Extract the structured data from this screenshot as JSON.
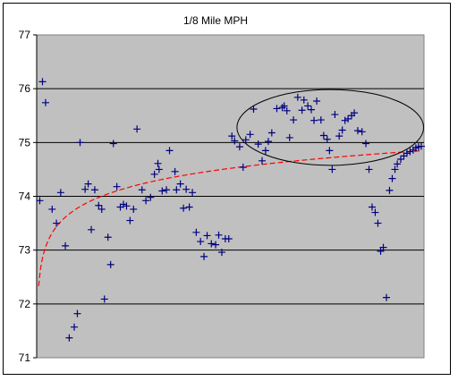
{
  "chart_data": {
    "type": "scatter",
    "title": "1/8 Mile MPH",
    "xlabel": "",
    "ylabel": "",
    "ylim": [
      71,
      77
    ],
    "xlim": [
      0,
      100
    ],
    "yticks": [
      "71",
      "72",
      "73",
      "74",
      "75",
      "76",
      "77"
    ],
    "grid": "horizontal major gridlines",
    "plot_background": "#c0c0c0",
    "marker": "plus",
    "marker_color": "#000080",
    "trendline": {
      "type": "logarithmic",
      "color": "#ff0000",
      "style": "dashed",
      "a": 72.662,
      "b": 0.475
    },
    "highlight_ellipse": {
      "center": [
        75.8,
        75.28
      ],
      "radius": [
        24.1,
        0.705
      ]
    },
    "x": [
      0.8,
      1.5,
      2.3,
      4.0,
      5.1,
      6.2,
      7.4,
      8.4,
      9.7,
      10.5,
      11.2,
      12.5,
      13.3,
      14.1,
      15.0,
      16.0,
      16.8,
      17.5,
      18.4,
      19.1,
      19.8,
      20.7,
      21.6,
      22.4,
      23.2,
      24.1,
      25.0,
      25.9,
      27.2,
      28.2,
      29.4,
      30.4,
      31.3,
      31.6,
      32.4,
      33.5,
      34.3,
      35.7,
      36.1,
      37.1,
      37.9,
      38.6,
      39.4,
      40.2,
      41.2,
      42.3,
      43.2,
      44.0,
      45.1,
      46.2,
      47.0,
      47.8,
      48.7,
      49.6,
      50.4,
      51.1,
      52.4,
      53.3,
      54.0,
      55.1,
      56.0,
      57.2,
      58.2,
      59.1,
      59.8,
      60.7,
      62.0,
      63.4,
      63.9,
      64.6,
      65.3,
      66.3,
      67.4,
      68.5,
      69.0,
      70.0,
      70.9,
      71.6,
      72.3,
      73.4,
      74.1,
      75.0,
      75.6,
      76.3,
      77.0,
      78.1,
      78.9,
      79.6,
      80.4,
      81.3,
      82.0,
      82.9,
      84.0,
      85.0,
      85.8,
      86.6,
      87.4,
      88.1,
      88.8,
      89.5,
      90.3,
      91.1,
      91.8,
      92.5,
      93.1,
      94.0,
      94.8,
      95.6,
      96.4,
      97.2,
      97.9,
      98.6,
      99.3
    ],
    "y": [
      73.92,
      76.13,
      75.74,
      73.76,
      73.5,
      74.07,
      73.08,
      71.37,
      71.57,
      71.82,
      75.0,
      74.13,
      74.23,
      73.38,
      74.12,
      73.83,
      73.76,
      72.09,
      73.24,
      72.73,
      74.98,
      74.18,
      73.8,
      73.85,
      73.82,
      73.55,
      73.76,
      75.25,
      74.12,
      73.92,
      73.98,
      74.41,
      74.61,
      74.5,
      74.1,
      74.12,
      74.85,
      74.46,
      74.12,
      74.23,
      73.78,
      74.13,
      73.8,
      74.07,
      73.33,
      73.16,
      72.88,
      73.27,
      73.12,
      73.1,
      73.28,
      72.96,
      73.21,
      73.21,
      75.12,
      75.03,
      74.92,
      74.54,
      75.05,
      75.15,
      75.62,
      74.97,
      74.66,
      74.85,
      75.02,
      75.18,
      75.63,
      75.65,
      75.68,
      75.59,
      75.09,
      75.42,
      75.84,
      75.6,
      75.79,
      75.68,
      75.61,
      75.41,
      75.77,
      75.42,
      75.13,
      75.06,
      74.85,
      74.5,
      75.52,
      75.12,
      75.23,
      75.41,
      75.44,
      75.5,
      75.55,
      75.22,
      75.2,
      74.98,
      74.5,
      73.8,
      73.7,
      73.5,
      72.98,
      73.05,
      72.12,
      74.11,
      74.33,
      74.5,
      74.6,
      74.69,
      74.75,
      74.8,
      74.83,
      74.86,
      74.9,
      74.92,
      74.93
    ]
  }
}
